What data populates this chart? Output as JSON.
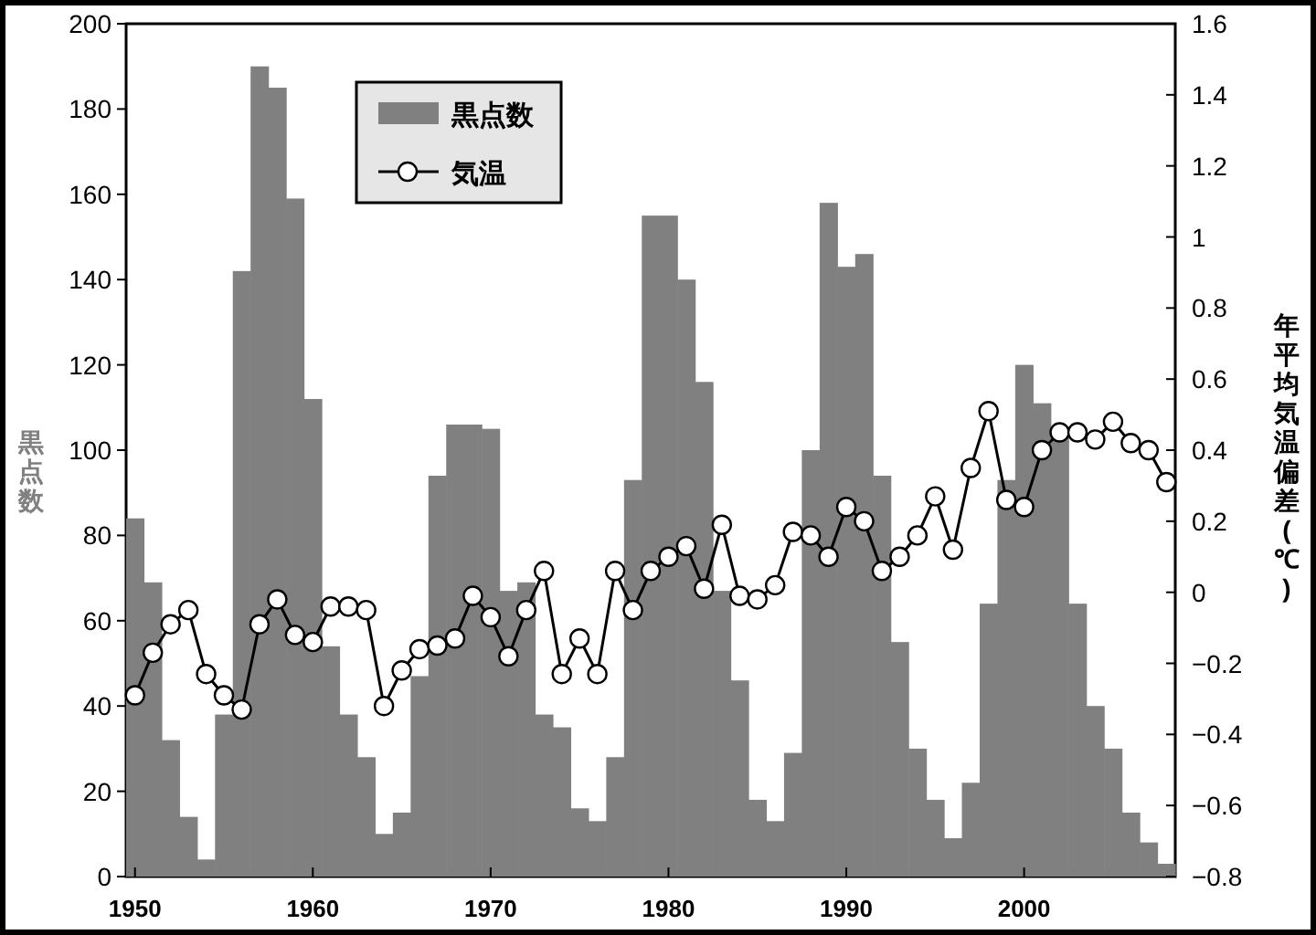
{
  "chart_data": {
    "type": "bar",
    "ylabel": "黒点数",
    "y2label": "年平均気温偏差(℃)",
    "legend": "top left",
    "marker": "circle",
    "grid": false,
    "x": [
      1950,
      1951,
      1952,
      1953,
      1954,
      1955,
      1956,
      1957,
      1958,
      1959,
      1960,
      1961,
      1962,
      1963,
      1964,
      1965,
      1966,
      1967,
      1968,
      1969,
      1970,
      1971,
      1972,
      1973,
      1974,
      1975,
      1976,
      1977,
      1978,
      1979,
      1980,
      1981,
      1982,
      1983,
      1984,
      1985,
      1986,
      1987,
      1988,
      1989,
      1990,
      1991,
      1992,
      1993,
      1994,
      1995,
      1996,
      1997,
      1998,
      1999,
      2000,
      2001,
      2002,
      2003,
      2004,
      2005,
      2006,
      2007,
      2008
    ],
    "xlim": [
      1949.5,
      2008.5
    ],
    "xticks": [
      1950,
      1960,
      1970,
      1980,
      1990,
      2000
    ],
    "ylim": [
      0,
      200
    ],
    "yticks": [
      0,
      20,
      40,
      60,
      80,
      100,
      120,
      140,
      160,
      180,
      200
    ],
    "y2lim": [
      -0.8,
      1.6
    ],
    "y2ticks": [
      -0.8,
      -0.6,
      -0.4,
      -0.2,
      0,
      0.2,
      0.4,
      0.6,
      0.8,
      1,
      1.2,
      1.4,
      1.6
    ],
    "series": [
      {
        "name": "黒点数",
        "color": "#808080",
        "values": [
          84,
          69,
          32,
          14,
          4,
          38,
          142,
          190,
          185,
          159,
          112,
          54,
          38,
          28,
          10,
          15,
          47,
          94,
          106,
          106,
          105,
          67,
          69,
          38,
          35,
          16,
          13,
          28,
          93,
          155,
          155,
          140,
          116,
          67,
          46,
          18,
          13,
          29,
          100,
          158,
          143,
          146,
          94,
          55,
          30,
          18,
          9,
          22,
          64,
          93,
          120,
          111,
          104,
          64,
          40,
          30,
          15,
          8,
          3
        ]
      },
      {
        "name": "気温",
        "type": "line",
        "axis": "y2",
        "color": "#000000",
        "values": [
          -0.29,
          -0.17,
          -0.09,
          -0.05,
          -0.23,
          -0.29,
          -0.33,
          -0.09,
          -0.02,
          -0.12,
          -0.14,
          -0.04,
          -0.04,
          -0.05,
          -0.32,
          -0.22,
          -0.16,
          -0.15,
          -0.13,
          -0.01,
          -0.07,
          -0.18,
          -0.05,
          0.06,
          -0.23,
          -0.13,
          -0.23,
          0.06,
          -0.05,
          0.06,
          0.1,
          0.13,
          0.01,
          0.19,
          -0.01,
          -0.02,
          0.02,
          0.17,
          0.16,
          0.1,
          0.24,
          0.2,
          0.06,
          0.1,
          0.16,
          0.27,
          0.12,
          0.35,
          0.51,
          0.26,
          0.24,
          0.4,
          0.45,
          0.45,
          0.43,
          0.48,
          0.42,
          0.4,
          0.31
        ]
      }
    ]
  }
}
